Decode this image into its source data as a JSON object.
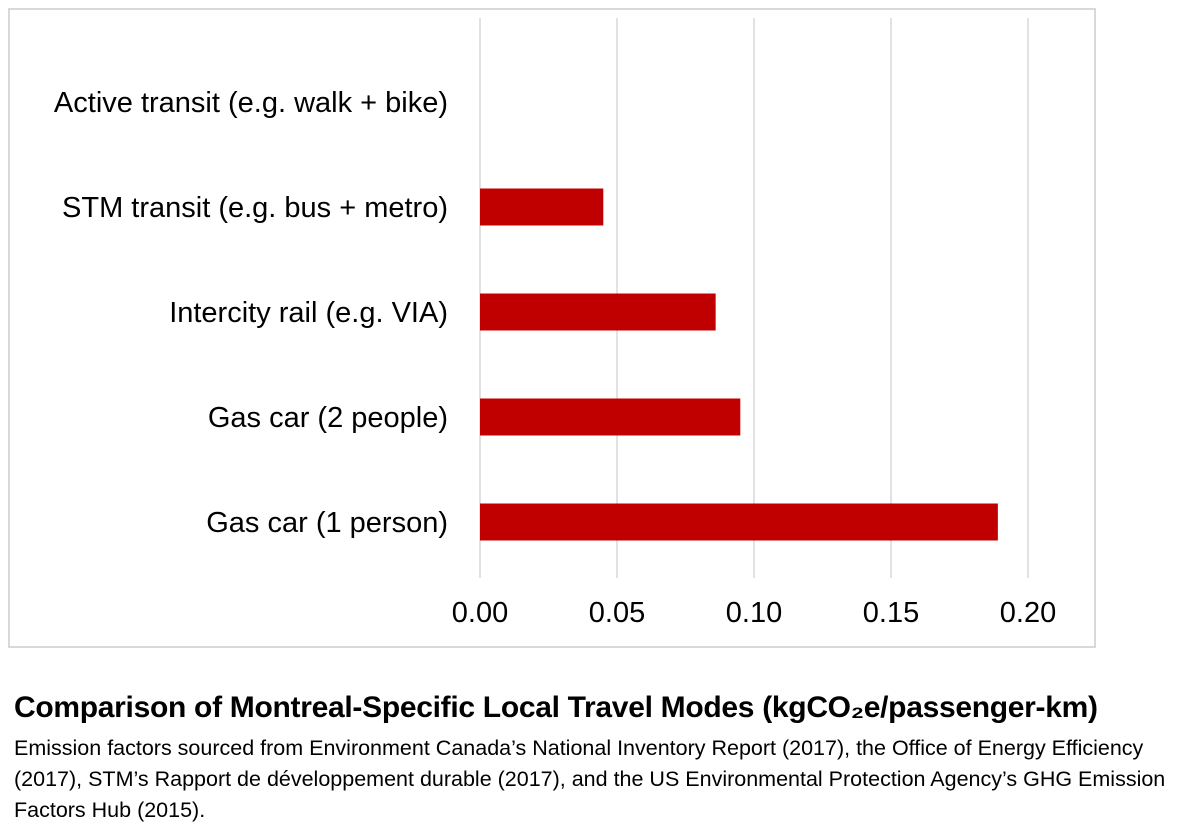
{
  "chart_data": {
    "type": "bar",
    "orientation": "horizontal",
    "categories": [
      "Active transit (e.g. walk + bike)",
      "STM transit (e.g. bus + metro)",
      "Intercity rail (e.g. VIA)",
      "Gas car (2 people)",
      "Gas car (1 person)"
    ],
    "values": [
      0,
      0.045,
      0.086,
      0.095,
      0.189
    ],
    "xlim": [
      0,
      0.2
    ],
    "ticks": [
      "0.00",
      "0.05",
      "0.10",
      "0.15",
      "0.20"
    ],
    "tick_values": [
      0,
      0.05,
      0.1,
      0.15,
      0.2
    ],
    "grid": "vertical",
    "bar_color": "#c00000",
    "title": "",
    "xlabel": "",
    "ylabel": ""
  },
  "caption": {
    "title": "Comparison of Montreal-Specific Local Travel Modes",
    "unit": "(kgCO₂e/passenger-km)",
    "body": "Emission factors sourced from Environment Canada’s National Inventory Report (2017), the Office of Energy Efficiency (2017), STM’s Rapport de développement durable (2017), and the US Environmental Protection Agency’s GHG Emission Factors Hub (2015)."
  }
}
